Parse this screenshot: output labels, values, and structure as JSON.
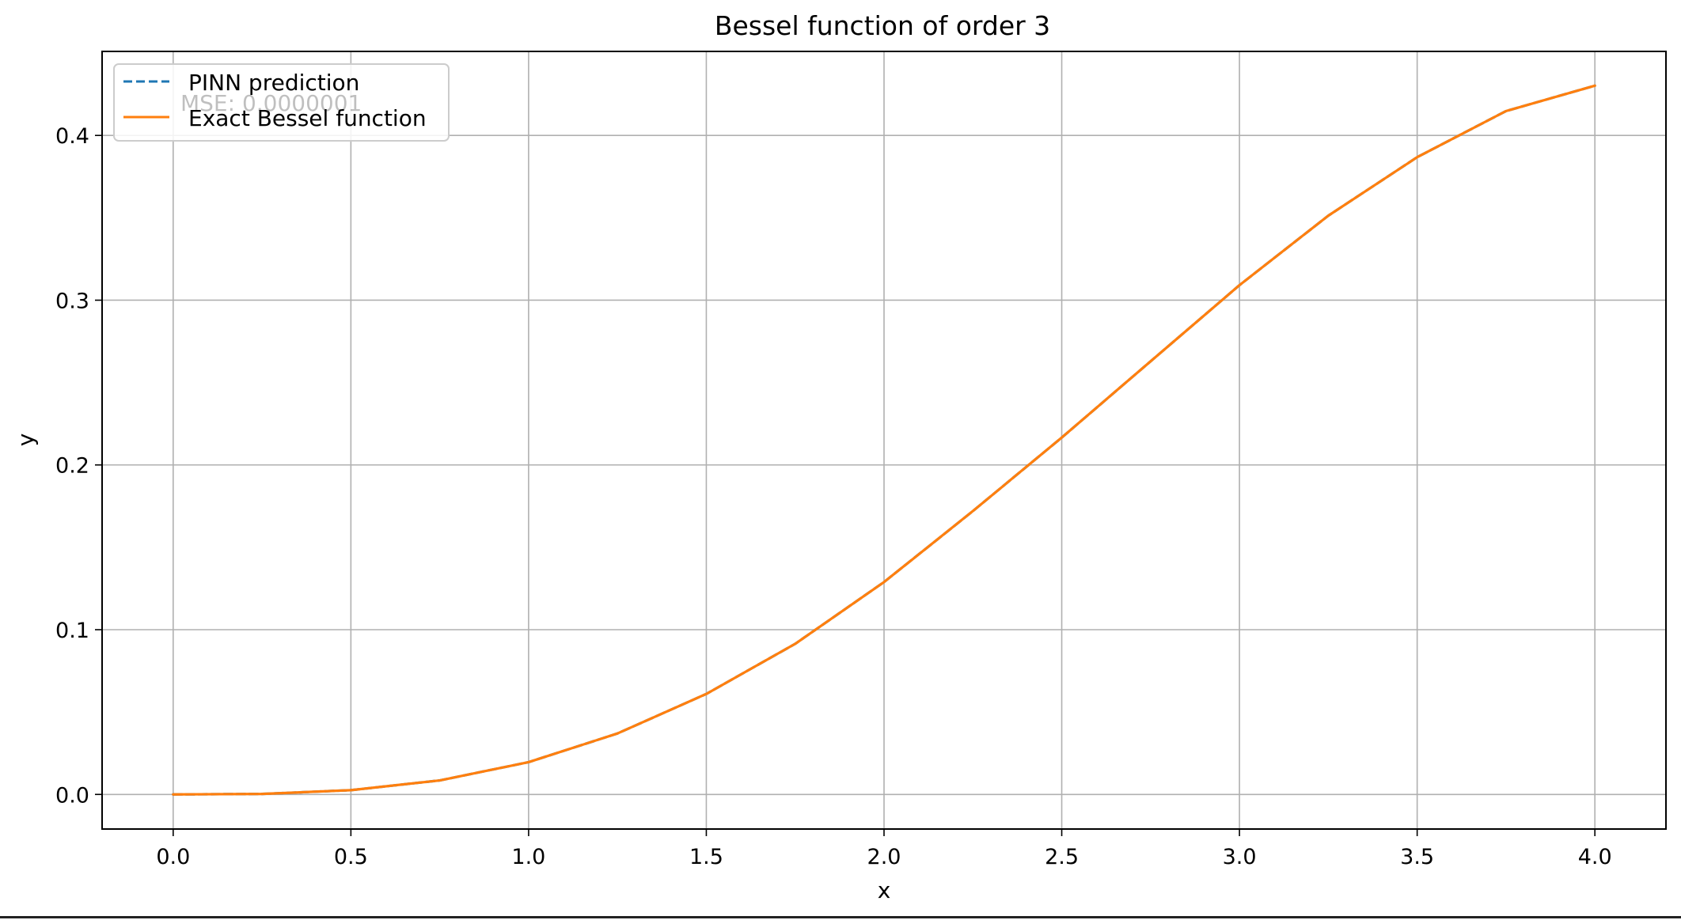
{
  "chart_data": {
    "type": "line",
    "title": "Bessel function of order 3",
    "xlabel": "x",
    "ylabel": "y",
    "xlim": [
      -0.2,
      4.2
    ],
    "ylim": [
      -0.021,
      0.451
    ],
    "xticks": [
      0.0,
      0.5,
      1.0,
      1.5,
      2.0,
      2.5,
      3.0,
      3.5,
      4.0
    ],
    "xtick_labels": [
      "0.0",
      "0.5",
      "1.0",
      "1.5",
      "2.0",
      "2.5",
      "3.0",
      "3.5",
      "4.0"
    ],
    "yticks": [
      0.0,
      0.1,
      0.2,
      0.3,
      0.4
    ],
    "ytick_labels": [
      "0.0",
      "0.1",
      "0.2",
      "0.3",
      "0.4"
    ],
    "grid": true,
    "legend_position": "upper-left",
    "annotation": "MSE: 0.0000001",
    "x": [
      0.0,
      0.25,
      0.5,
      0.75,
      1.0,
      1.25,
      1.5,
      1.75,
      2.0,
      2.25,
      2.5,
      2.75,
      3.0,
      3.25,
      3.5,
      3.75,
      4.0
    ],
    "series": [
      {
        "name": "PINN prediction",
        "color": "#1f77b4",
        "style": "dashed",
        "values": [
          0.0,
          0.0003,
          0.0026,
          0.0085,
          0.0196,
          0.037,
          0.061,
          0.0914,
          0.1289,
          0.172,
          0.2166,
          0.2629,
          0.3091,
          0.3513,
          0.3868,
          0.4148,
          0.4302
        ]
      },
      {
        "name": "Exact Bessel function",
        "color": "#ff7f0e",
        "style": "solid",
        "values": [
          0.0,
          0.0003,
          0.0026,
          0.0085,
          0.0196,
          0.037,
          0.061,
          0.0914,
          0.1289,
          0.172,
          0.2166,
          0.2629,
          0.3091,
          0.3513,
          0.3868,
          0.4148,
          0.4302
        ]
      }
    ]
  }
}
